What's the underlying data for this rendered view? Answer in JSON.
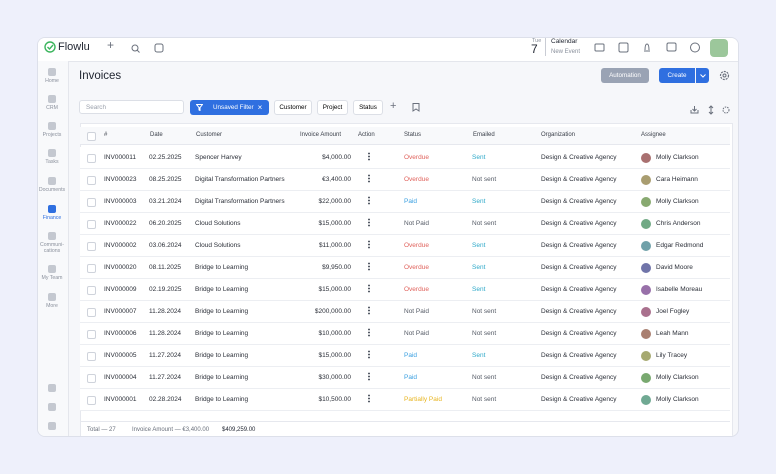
{
  "app": {
    "logo": "Flowlu",
    "calendar": {
      "weekday": "Tue",
      "day": "7",
      "title": "Calendar",
      "subtitle": "New Event"
    }
  },
  "sidebar": {
    "items": [
      "Home",
      "CRM",
      "Projects",
      "Tasks",
      "Documents",
      "Finance",
      "Communi-cations",
      "My Team",
      "More"
    ],
    "active": 5
  },
  "header": {
    "title": "Invoices",
    "buttons": [
      "Automation",
      "Create"
    ]
  },
  "filters": {
    "search_placeholder": "Search",
    "active_filter": "Unsaved Filter",
    "buttons": [
      "Customer",
      "Project",
      "Status"
    ]
  },
  "table": {
    "columns": [
      "#",
      "Date",
      "Customer",
      "Invoice Amount",
      "Action",
      "Status",
      "Emailed",
      "Organization",
      "Assignee"
    ],
    "rows": [
      {
        "number": "INV000011",
        "date": "02.25.2025",
        "customer": "Spencer Harvey",
        "amount": "$4,000.00",
        "status": "Overdue",
        "status_color": "#e0625c",
        "emailed": "Sent",
        "emailed_color": "#2ea9c9",
        "organization": "Design & Creative Agency",
        "assignee": "Molly Clarkson"
      },
      {
        "number": "INV000023",
        "date": "08.25.2025",
        "customer": "Digital Transformation Partners",
        "amount": "€3,400.00",
        "status": "Overdue",
        "status_color": "#e0625c",
        "emailed": "Not sent",
        "emailed_color": "#555b66",
        "organization": "Design & Creative Agency",
        "assignee": "Cara Heimann"
      },
      {
        "number": "INV000003",
        "date": "03.21.2024",
        "customer": "Digital Transformation Partners",
        "amount": "$22,000.00",
        "status": "Paid",
        "status_color": "#3a9fe0",
        "emailed": "Sent",
        "emailed_color": "#2ea9c9",
        "organization": "Design & Creative Agency",
        "assignee": "Molly Clarkson"
      },
      {
        "number": "INV000022",
        "date": "06.20.2025",
        "customer": "Cloud Solutions",
        "amount": "$15,000.00",
        "status": "Not Paid",
        "status_color": "#555b66",
        "emailed": "Not sent",
        "emailed_color": "#555b66",
        "organization": "Design & Creative Agency",
        "assignee": "Chris Anderson"
      },
      {
        "number": "INV000002",
        "date": "03.06.2024",
        "customer": "Cloud Solutions",
        "amount": "$11,000.00",
        "status": "Overdue",
        "status_color": "#e0625c",
        "emailed": "Sent",
        "emailed_color": "#2ea9c9",
        "organization": "Design & Creative Agency",
        "assignee": "Edgar Redmond"
      },
      {
        "number": "INV000020",
        "date": "08.11.2025",
        "customer": "Bridge to Learning",
        "amount": "$9,950.00",
        "status": "Overdue",
        "status_color": "#e0625c",
        "emailed": "Sent",
        "emailed_color": "#2ea9c9",
        "organization": "Design & Creative Agency",
        "assignee": "David Moore"
      },
      {
        "number": "INV000009",
        "date": "02.19.2025",
        "customer": "Bridge to Learning",
        "amount": "$15,000.00",
        "status": "Overdue",
        "status_color": "#e0625c",
        "emailed": "Sent",
        "emailed_color": "#2ea9c9",
        "organization": "Design & Creative Agency",
        "assignee": "Isabelle Moreau"
      },
      {
        "number": "INV000007",
        "date": "11.28.2024",
        "customer": "Bridge to Learning",
        "amount": "$200,000.00",
        "status": "Not Paid",
        "status_color": "#555b66",
        "emailed": "Not sent",
        "emailed_color": "#555b66",
        "organization": "Design & Creative Agency",
        "assignee": "Joel Fogley"
      },
      {
        "number": "INV000006",
        "date": "11.28.2024",
        "customer": "Bridge to Learning",
        "amount": "$10,000.00",
        "status": "Not Paid",
        "status_color": "#555b66",
        "emailed": "Not sent",
        "emailed_color": "#555b66",
        "organization": "Design & Creative Agency",
        "assignee": "Leah Mann"
      },
      {
        "number": "INV000005",
        "date": "11.27.2024",
        "customer": "Bridge to Learning",
        "amount": "$15,000.00",
        "status": "Paid",
        "status_color": "#3a9fe0",
        "emailed": "Sent",
        "emailed_color": "#2ea9c9",
        "organization": "Design & Creative Agency",
        "assignee": "Lily Tracey"
      },
      {
        "number": "INV000004",
        "date": "11.27.2024",
        "customer": "Bridge to Learning",
        "amount": "$30,000.00",
        "status": "Paid",
        "status_color": "#3a9fe0",
        "emailed": "Not sent",
        "emailed_color": "#555b66",
        "organization": "Design & Creative Agency",
        "assignee": "Molly Clarkson"
      },
      {
        "number": "INV000001",
        "date": "02.28.2024",
        "customer": "Bridge to Learning",
        "amount": "$10,500.00",
        "status": "Partially Paid",
        "status_color": "#e8b520",
        "emailed": "Not sent",
        "emailed_color": "#555b66",
        "organization": "Design & Creative Agency",
        "assignee": "Molly Clarkson"
      }
    ]
  },
  "footer": {
    "total": "Total — 27",
    "amount_label": "Invoice Amount — €3,400.00",
    "amount_total": "$409,259.00"
  }
}
